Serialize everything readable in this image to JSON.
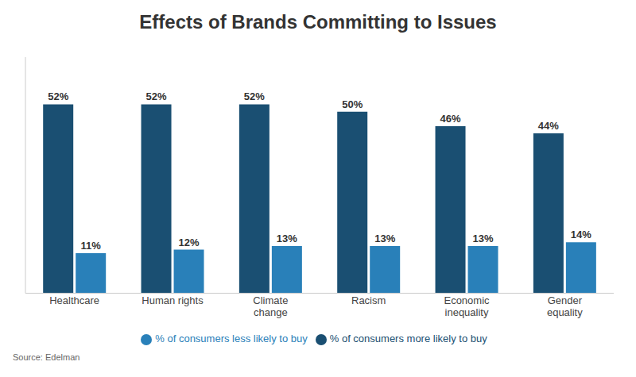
{
  "chart_data": {
    "type": "bar",
    "title": "Effects of Brands Committing to Issues",
    "categories": [
      "Healthcare",
      "Human rights",
      "Climate\nchange",
      "Racism",
      "Economic\ninequality",
      "Gender\nequality"
    ],
    "series": [
      {
        "name": "% of consumers more likely to buy",
        "color": "#1a4f72",
        "values": [
          52,
          52,
          52,
          50,
          46,
          44
        ],
        "value_labels": [
          "52%",
          "52%",
          "52%",
          "50%",
          "46%",
          "44%"
        ]
      },
      {
        "name": "% of consumers less likely to buy",
        "color": "#2980b9",
        "values": [
          11,
          12,
          13,
          13,
          13,
          14
        ],
        "value_labels": [
          "11%",
          "12%",
          "13%",
          "13%",
          "13%",
          "14%"
        ]
      }
    ],
    "ylim": [
      0,
      65
    ],
    "grid": false,
    "legend": "bottom",
    "data_labels": true,
    "tick_labels": "x",
    "source": "Source: Edelman"
  }
}
